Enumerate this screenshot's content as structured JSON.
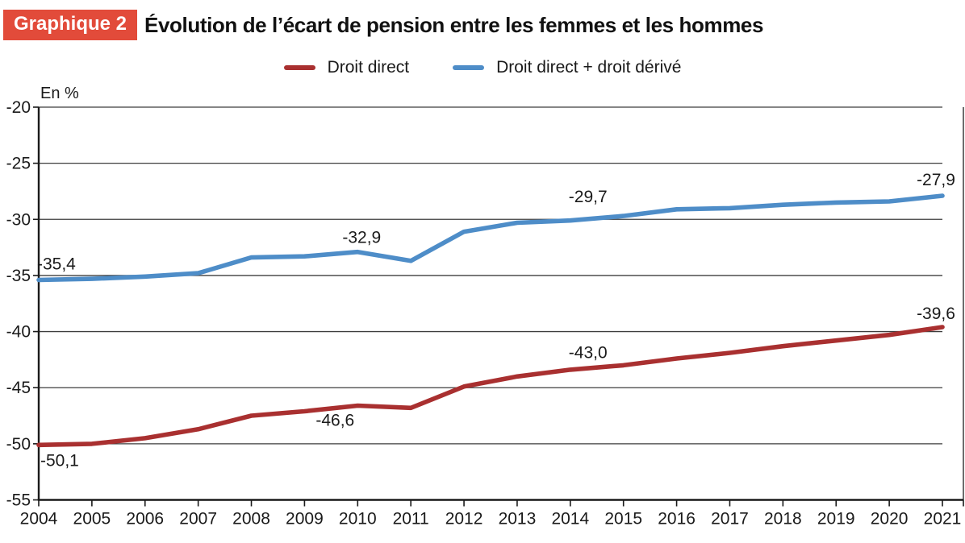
{
  "header": {
    "badge": "Graphique 2",
    "title": "Évolution de l’écart de pension entre les femmes et les hommes"
  },
  "colors": {
    "badge_background": "#e24b3a",
    "droit_direct": "#a93030",
    "droit_direct_derive": "#4e8dc8",
    "grid": "#3d3d3d",
    "axis": "#1a1a1a"
  },
  "chart_data": {
    "type": "line",
    "title": "Évolution de l’écart de pension entre les femmes et les hommes",
    "unit_label": "En %",
    "xlabel": "",
    "ylabel": "En %",
    "x": [
      2004,
      2005,
      2006,
      2007,
      2008,
      2009,
      2010,
      2011,
      2012,
      2013,
      2014,
      2015,
      2016,
      2017,
      2018,
      2019,
      2020,
      2021
    ],
    "ylim": [
      -55,
      -20
    ],
    "yticks": [
      -20,
      -25,
      -30,
      -35,
      -40,
      -45,
      -50,
      -55
    ],
    "grid": true,
    "legend_position": "top",
    "decimal_separator": ",",
    "series": [
      {
        "name": "Droit direct",
        "color": "#a93030",
        "values": [
          -50.1,
          -50.0,
          -49.5,
          -48.7,
          -47.5,
          -47.1,
          -46.6,
          -46.8,
          -44.9,
          -44.0,
          -43.4,
          -43.0,
          -42.4,
          -41.9,
          -41.3,
          -40.8,
          -40.3,
          -39.6
        ],
        "point_labels": [
          {
            "x": 2004,
            "text": "-50,1",
            "anchor": "start",
            "dx": 2,
            "dy": 26
          },
          {
            "x": 2010,
            "text": "-46,6",
            "anchor": "middle",
            "dx": -28,
            "dy": 25
          },
          {
            "x": 2015,
            "text": "-43,0",
            "anchor": "middle",
            "dx": -44,
            "dy": -9
          },
          {
            "x": 2021,
            "text": "-39,6",
            "anchor": "middle",
            "dx": -8,
            "dy": -10
          }
        ]
      },
      {
        "name": "Droit direct + droit dérivé",
        "color": "#4e8dc8",
        "values": [
          -35.4,
          -35.3,
          -35.1,
          -34.8,
          -33.4,
          -33.3,
          -32.9,
          -33.7,
          -31.1,
          -30.3,
          -30.1,
          -29.7,
          -29.1,
          -29.0,
          -28.7,
          -28.5,
          -28.4,
          -27.9
        ],
        "point_labels": [
          {
            "x": 2004,
            "text": "-35,4",
            "anchor": "start",
            "dx": -2,
            "dy": -13
          },
          {
            "x": 2010,
            "text": "-32,9",
            "anchor": "middle",
            "dx": 5,
            "dy": -11
          },
          {
            "x": 2015,
            "text": "-29,7",
            "anchor": "middle",
            "dx": -44,
            "dy": -17
          },
          {
            "x": 2021,
            "text": "-27,9",
            "anchor": "middle",
            "dx": -8,
            "dy": -13
          }
        ]
      }
    ]
  }
}
